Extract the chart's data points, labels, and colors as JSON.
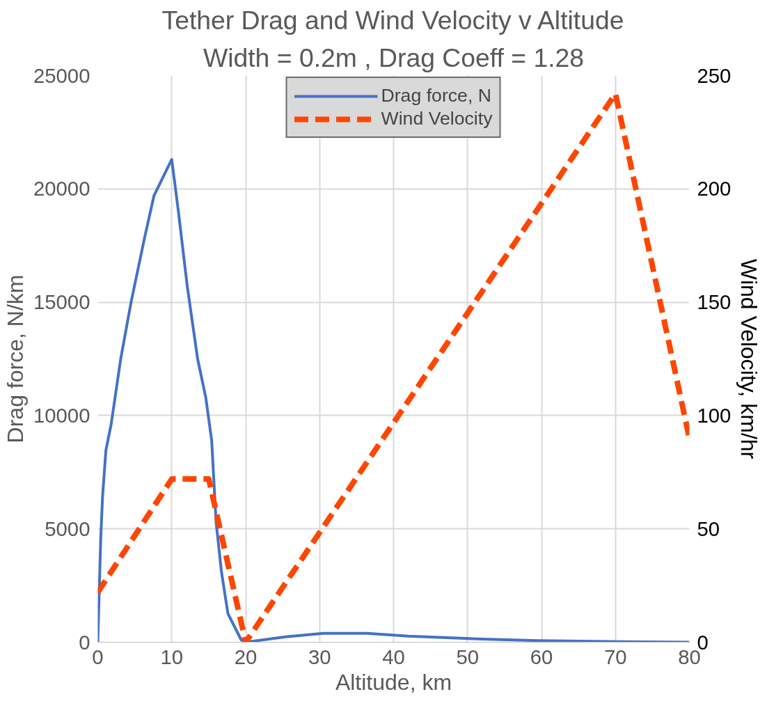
{
  "chart_data": {
    "type": "line",
    "title": "Tether Drag and Wind Velocity v Altitude",
    "subtitle": "Width = 0.2m , Drag Coeff = 1.28",
    "xlabel": "Altitude, km",
    "ylabel": "Drag force, N/km",
    "y2label": "Wind Velocity, km/hr",
    "xlim": [
      0,
      80
    ],
    "xticks": [
      0,
      10,
      20,
      30,
      40,
      50,
      60,
      70,
      80
    ],
    "ylim": [
      0,
      25000
    ],
    "yticks": [
      0,
      5000,
      10000,
      15000,
      20000,
      25000
    ],
    "y2lim": [
      0,
      250
    ],
    "y2ticks": [
      0,
      50,
      100,
      150,
      200,
      250
    ],
    "grid": true,
    "legend": "top",
    "marker": "none",
    "series": [
      {
        "name": "Drag force, N",
        "color": "#4472c4",
        "line_style": "solid",
        "x": [
          0,
          0.4,
          0.65,
          1.1,
          1.8,
          3.1,
          4.5,
          6.3,
          7.6,
          10,
          10.9,
          12.1,
          13.5,
          14.6,
          15.4,
          16,
          16.7,
          17.6,
          19.4,
          20,
          25.4,
          30.5,
          36.4,
          42,
          52,
          59.6,
          71,
          80
        ],
        "values": [
          0,
          4600,
          6460,
          8470,
          9600,
          12500,
          15000,
          17800,
          19700,
          21300,
          19000,
          15700,
          12500,
          10800,
          8900,
          5300,
          3160,
          1260,
          100,
          0,
          240,
          390,
          390,
          270,
          140,
          70,
          20,
          0
        ]
      },
      {
        "name": "Wind Velocity",
        "color": "#ff4500",
        "line_style": "dashed",
        "axis": "y2",
        "x": [
          0,
          10,
          15,
          20,
          70,
          80
        ],
        "values": [
          22,
          72,
          72,
          0,
          242,
          90
        ]
      }
    ]
  }
}
